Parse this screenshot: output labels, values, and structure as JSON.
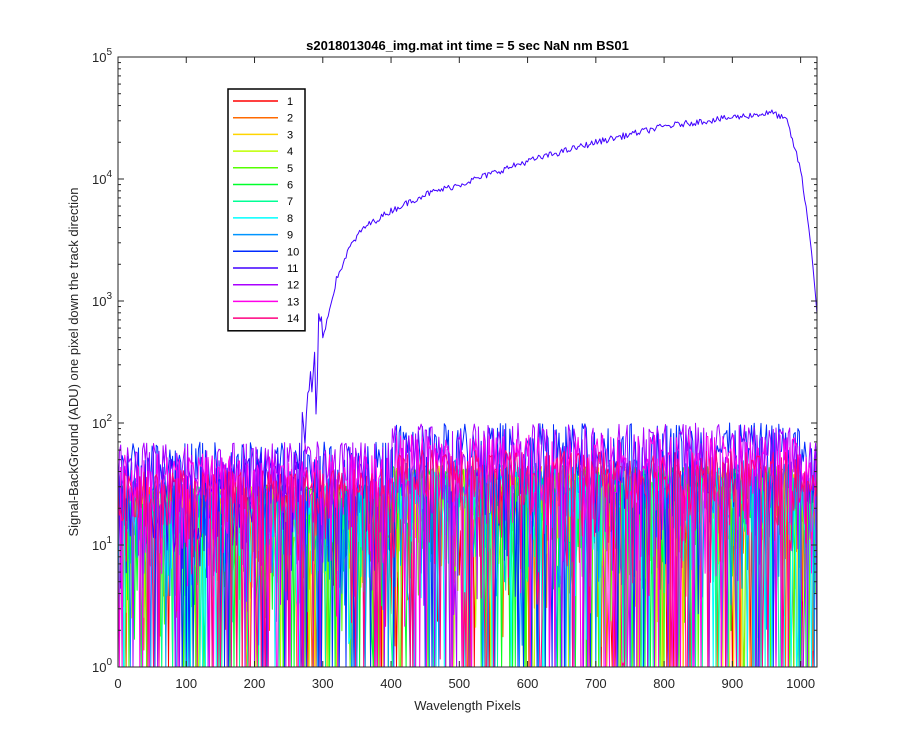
{
  "chart_data": {
    "type": "line",
    "title": "s2018013046_img.mat int time = 5 sec  NaN nm BS01",
    "xlabel": "Wavelength Pixels",
    "ylabel": "Signal-BackGround (ADU) one pixel down the track direction",
    "xlim": [
      0,
      1024
    ],
    "ylim": [
      1,
      100000
    ],
    "yscale": "log",
    "x_ticks": [
      "0",
      "100",
      "200",
      "300",
      "400",
      "500",
      "600",
      "700",
      "800",
      "900",
      "1000"
    ],
    "x_tick_values": [
      0,
      100,
      200,
      300,
      400,
      500,
      600,
      700,
      800,
      900,
      1000
    ],
    "y_ticks": [
      {
        "base": "10",
        "exp": "0",
        "value": 1
      },
      {
        "base": "10",
        "exp": "1",
        "value": 10
      },
      {
        "base": "10",
        "exp": "2",
        "value": 100
      },
      {
        "base": "10",
        "exp": "3",
        "value": 1000
      },
      {
        "base": "10",
        "exp": "4",
        "value": 10000
      },
      {
        "base": "10",
        "exp": "5",
        "value": 100000
      }
    ],
    "grid": false,
    "legend_position": "top-left",
    "series": [
      {
        "name": "1",
        "color": "#ff0000",
        "noise_range": [
          1,
          45
        ]
      },
      {
        "name": "2",
        "color": "#ff6a00",
        "noise_range": [
          1,
          45
        ]
      },
      {
        "name": "3",
        "color": "#ffd500",
        "noise_range": [
          1,
          45
        ]
      },
      {
        "name": "4",
        "color": "#bfff00",
        "noise_range": [
          1,
          45
        ]
      },
      {
        "name": "5",
        "color": "#55ff00",
        "noise_range": [
          1,
          45
        ]
      },
      {
        "name": "6",
        "color": "#00ff2b",
        "noise_range": [
          1,
          45
        ]
      },
      {
        "name": "7",
        "color": "#00ff95",
        "noise_range": [
          1,
          45
        ]
      },
      {
        "name": "8",
        "color": "#00ffff",
        "noise_range": [
          1,
          45
        ]
      },
      {
        "name": "9",
        "color": "#0095ff",
        "noise_range": [
          1,
          50
        ]
      },
      {
        "name": "10",
        "color": "#002bff",
        "noise_range": [
          1,
          100
        ]
      },
      {
        "name": "11",
        "color": "#4000ff",
        "profile": [
          [
            0,
            20
          ],
          [
            260,
            25
          ],
          [
            275,
            60
          ],
          [
            285,
            120
          ],
          [
            300,
            500
          ],
          [
            320,
            1500
          ],
          [
            340,
            2800
          ],
          [
            360,
            4000
          ],
          [
            400,
            5500
          ],
          [
            450,
            7500
          ],
          [
            500,
            9000
          ],
          [
            600,
            14000
          ],
          [
            700,
            20000
          ],
          [
            800,
            27000
          ],
          [
            900,
            32000
          ],
          [
            960,
            35000
          ],
          [
            980,
            30000
          ],
          [
            1000,
            12000
          ],
          [
            1015,
            3000
          ],
          [
            1024,
            800
          ]
        ]
      },
      {
        "name": "12",
        "color": "#aa00ff",
        "noise_range": [
          1,
          100
        ]
      },
      {
        "name": "13",
        "color": "#ff00ea",
        "noise_range": [
          1,
          80
        ]
      },
      {
        "name": "14",
        "color": "#ff0080",
        "noise_range": [
          1,
          60
        ]
      }
    ]
  }
}
